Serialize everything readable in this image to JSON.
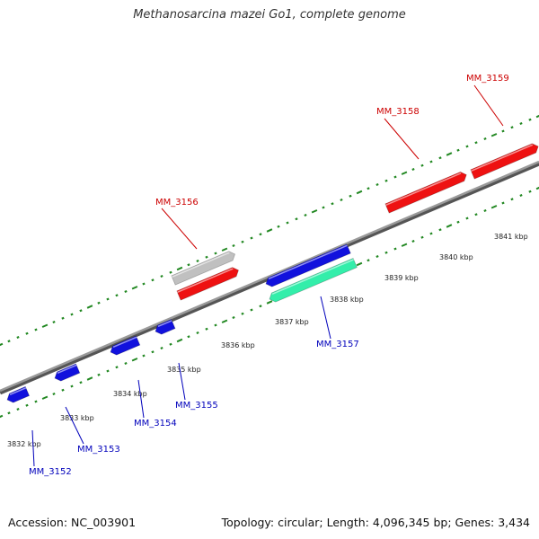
{
  "title": "Methanosarcina mazei Go1, complete genome",
  "footer": {
    "accession": "Accession: NC_003901",
    "summary": "Topology: circular; Length: 4,096,345 bp; Genes: 3,434"
  },
  "colors": {
    "forward_gene": "#ee1111",
    "reverse_gene": "#1111dd",
    "rna_gene": "#33eeaa",
    "other_feature": "#c0c0c0",
    "backbone": "#7a7a7a",
    "tick": "#228822",
    "forward_label": "#cc0000",
    "reverse_label": "#0000bb"
  },
  "scale_labels": [
    "3832 kbp",
    "3833 kbp",
    "3834 kbp",
    "3835 kbp",
    "3836 kbp",
    "3837 kbp",
    "3838 kbp",
    "3839 kbp",
    "3840 kbp",
    "3841 kbp"
  ],
  "genes_forward": [
    {
      "id": "MM_3156",
      "color": "forward_gene"
    },
    {
      "id": "MM_3158",
      "color": "forward_gene"
    },
    {
      "id": "MM_3159",
      "color": "forward_gene"
    }
  ],
  "genes_reverse": [
    {
      "id": "MM_3152",
      "color": "reverse_gene"
    },
    {
      "id": "MM_3153",
      "color": "reverse_gene"
    },
    {
      "id": "MM_3154",
      "color": "reverse_gene"
    },
    {
      "id": "MM_3155",
      "color": "reverse_gene"
    },
    {
      "id": "MM_3157",
      "color": "reverse_gene"
    }
  ],
  "features_unlabeled": [
    {
      "color": "reverse_gene"
    },
    {
      "color": "other_feature"
    },
    {
      "color": "rna_gene"
    }
  ]
}
